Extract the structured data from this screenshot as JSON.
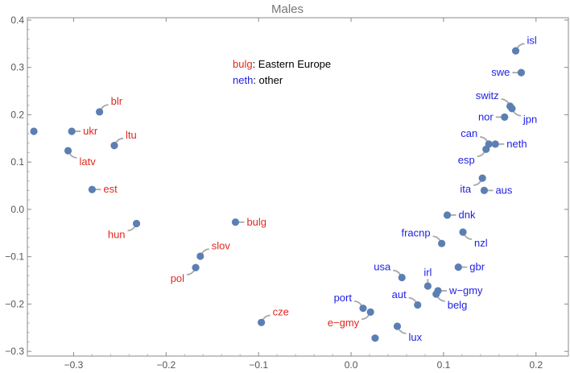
{
  "chart_data": {
    "type": "scatter",
    "title": "Males",
    "xlabel": "",
    "ylabel": "",
    "xlim": [
      -0.35,
      0.235
    ],
    "ylim": [
      -0.31,
      0.405
    ],
    "xticks": [
      -0.3,
      -0.2,
      -0.1,
      0.0,
      0.1,
      0.2
    ],
    "xtick_labels": [
      "−0.3",
      "−0.2",
      "−0.1",
      "0.0",
      "0.1",
      "0.2"
    ],
    "yticks": [
      -0.3,
      -0.2,
      -0.1,
      0.0,
      0.1,
      0.2,
      0.3,
      0.4
    ],
    "ytick_labels": [
      "−0.3",
      "−0.2",
      "−0.1",
      "0.0",
      "0.1",
      "0.2",
      "0.3",
      "0.4"
    ],
    "grid": false,
    "point_color": "#5b7fb3",
    "leader_color": "#a8a8a8",
    "group_colors": {
      "eastern": "#e0281e",
      "other": "#1e1ee6"
    },
    "legend": {
      "placement": "top-center",
      "items": [
        {
          "key": "bulg",
          "text": ": Eastern Europe",
          "group": "eastern"
        },
        {
          "key": "neth",
          "text": ": other",
          "group": "other"
        }
      ]
    },
    "points": [
      {
        "label": "",
        "x": -0.343,
        "y": 0.165,
        "group": "eastern",
        "dir": "none"
      },
      {
        "label": "blr",
        "x": -0.272,
        "y": 0.206,
        "group": "eastern",
        "dir": "ur"
      },
      {
        "label": "ukr",
        "x": -0.302,
        "y": 0.165,
        "group": "eastern",
        "dir": "r"
      },
      {
        "label": "ltu",
        "x": -0.256,
        "y": 0.135,
        "group": "eastern",
        "dir": "ur"
      },
      {
        "label": "latv",
        "x": -0.306,
        "y": 0.124,
        "group": "eastern",
        "dir": "dr"
      },
      {
        "label": "est",
        "x": -0.28,
        "y": 0.042,
        "group": "eastern",
        "dir": "r"
      },
      {
        "label": "hun",
        "x": -0.232,
        "y": -0.03,
        "group": "eastern",
        "dir": "dl"
      },
      {
        "label": "bulg",
        "x": -0.125,
        "y": -0.027,
        "group": "eastern",
        "dir": "r"
      },
      {
        "label": "slov",
        "x": -0.163,
        "y": -0.099,
        "group": "eastern",
        "dir": "ur"
      },
      {
        "label": "pol",
        "x": -0.168,
        "y": -0.123,
        "group": "eastern",
        "dir": "dl"
      },
      {
        "label": "cze",
        "x": -0.097,
        "y": -0.239,
        "group": "eastern",
        "dir": "ur"
      },
      {
        "label": "e−gmy",
        "x": 0.021,
        "y": -0.217,
        "group": "eastern",
        "dir": "dl"
      },
      {
        "label": "isl",
        "x": 0.178,
        "y": 0.335,
        "group": "other",
        "dir": "ur"
      },
      {
        "label": "swe",
        "x": 0.184,
        "y": 0.289,
        "group": "other",
        "dir": "l"
      },
      {
        "label": "switz",
        "x": 0.172,
        "y": 0.218,
        "group": "other",
        "dir": "ul"
      },
      {
        "label": "jpn",
        "x": 0.174,
        "y": 0.213,
        "group": "other",
        "dir": "dr"
      },
      {
        "label": "nor",
        "x": 0.166,
        "y": 0.195,
        "group": "other",
        "dir": "l"
      },
      {
        "label": "can",
        "x": 0.149,
        "y": 0.138,
        "group": "other",
        "dir": "ul"
      },
      {
        "label": "neth",
        "x": 0.156,
        "y": 0.138,
        "group": "other",
        "dir": "r"
      },
      {
        "label": "esp",
        "x": 0.146,
        "y": 0.127,
        "group": "other",
        "dir": "dl"
      },
      {
        "label": "ita",
        "x": 0.142,
        "y": 0.066,
        "group": "other",
        "dir": "dl"
      },
      {
        "label": "aus",
        "x": 0.144,
        "y": 0.04,
        "group": "other",
        "dir": "r"
      },
      {
        "label": "dnk",
        "x": 0.104,
        "y": -0.012,
        "group": "other",
        "dir": "r"
      },
      {
        "label": "fracnp",
        "x": 0.098,
        "y": -0.072,
        "group": "other",
        "dir": "ul"
      },
      {
        "label": "nzl",
        "x": 0.121,
        "y": -0.048,
        "group": "other",
        "dir": "dr"
      },
      {
        "label": "gbr",
        "x": 0.116,
        "y": -0.122,
        "group": "other",
        "dir": "r"
      },
      {
        "label": "usa",
        "x": 0.055,
        "y": -0.144,
        "group": "other",
        "dir": "ul"
      },
      {
        "label": "irl",
        "x": 0.083,
        "y": -0.162,
        "group": "other",
        "dir": "u"
      },
      {
        "label": "w−gmy",
        "x": 0.094,
        "y": -0.172,
        "group": "other",
        "dir": "r"
      },
      {
        "label": "belg",
        "x": 0.092,
        "y": -0.179,
        "group": "other",
        "dir": "dr"
      },
      {
        "label": "port",
        "x": 0.013,
        "y": -0.209,
        "group": "other",
        "dir": "ul"
      },
      {
        "label": "aut",
        "x": 0.072,
        "y": -0.202,
        "group": "other",
        "dir": "ul"
      },
      {
        "label": "lux",
        "x": 0.05,
        "y": -0.247,
        "group": "other",
        "dir": "dr"
      },
      {
        "label": "",
        "x": 0.026,
        "y": -0.272,
        "group": "other",
        "dir": "none"
      }
    ]
  }
}
